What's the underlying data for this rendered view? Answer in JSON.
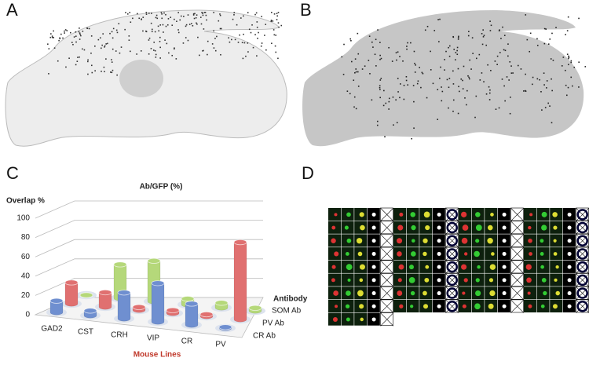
{
  "panel_labels": [
    "A",
    "B",
    "C",
    "D"
  ],
  "chart_data": {
    "type": "bar3d",
    "title": "Ab/GFP (%)",
    "y_label": "Overlap %",
    "x_label": "Mouse Lines",
    "depth_label": "Antibody",
    "categories": [
      "GAD2",
      "CST",
      "CRH",
      "VIP",
      "CR",
      "PV"
    ],
    "series": [
      {
        "name": "CR Ab",
        "color": "#6f8fd0",
        "values": [
          12,
          5,
          27,
          40,
          22,
          1
        ]
      },
      {
        "name": "PV Ab",
        "color": "#e07070",
        "values": [
          22,
          15,
          3,
          3,
          2,
          80
        ]
      },
      {
        "name": "SOM Ab",
        "color": "#b5d87a",
        "values": [
          0,
          35,
          42,
          6,
          5,
          3
        ]
      }
    ],
    "ylim": [
      0,
      100
    ],
    "yticks": [
      0,
      20,
      40,
      60,
      80,
      100
    ],
    "grid": true
  }
}
